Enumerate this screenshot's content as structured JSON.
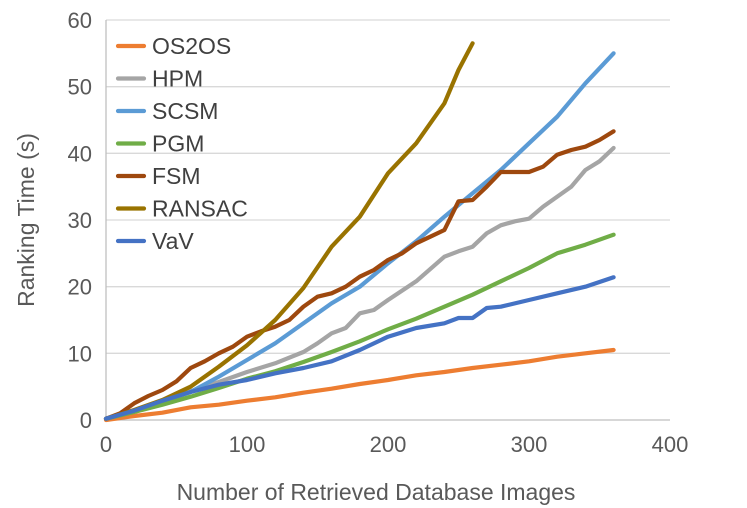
{
  "chart_data": {
    "type": "line",
    "title": "",
    "xlabel": "Number of Retrieved Database Images",
    "ylabel": "Ranking Time (s)",
    "xlim": [
      0,
      400
    ],
    "ylim": [
      0,
      60
    ],
    "x_ticks": [
      0,
      100,
      200,
      300,
      400
    ],
    "y_ticks": [
      0,
      10,
      20,
      30,
      40,
      50,
      60
    ],
    "grid": "horizontal",
    "legend_position": "top-left",
    "series": [
      {
        "name": "OS2OS",
        "color": "#ED7D31",
        "x": [
          0,
          20,
          40,
          60,
          80,
          100,
          120,
          140,
          160,
          180,
          200,
          220,
          240,
          260,
          280,
          300,
          320,
          340,
          360
        ],
        "y": [
          0,
          0.6,
          1.1,
          1.9,
          2.3,
          2.9,
          3.4,
          4.1,
          4.7,
          5.4,
          6.0,
          6.7,
          7.2,
          7.8,
          8.3,
          8.8,
          9.5,
          10.0,
          10.5
        ]
      },
      {
        "name": "HPM",
        "color": "#A5A5A5",
        "x": [
          0,
          20,
          40,
          60,
          80,
          100,
          120,
          140,
          150,
          160,
          170,
          180,
          190,
          200,
          220,
          240,
          250,
          260,
          270,
          280,
          290,
          300,
          310,
          320,
          330,
          340,
          350,
          360
        ],
        "y": [
          0.2,
          1.3,
          2.6,
          4.3,
          5.7,
          7.2,
          8.5,
          10.2,
          11.5,
          13.0,
          13.8,
          16.0,
          16.5,
          18.0,
          20.8,
          24.5,
          25.3,
          26.0,
          28.0,
          29.2,
          29.8,
          30.2,
          32.0,
          33.5,
          35.0,
          37.5,
          38.8,
          40.8
        ]
      },
      {
        "name": "SCSM",
        "color": "#5B9BD5",
        "x": [
          0,
          20,
          40,
          60,
          80,
          100,
          120,
          140,
          160,
          180,
          200,
          220,
          240,
          260,
          280,
          300,
          320,
          340,
          360
        ],
        "y": [
          0.2,
          1.3,
          2.8,
          4.2,
          6.5,
          9.0,
          11.5,
          14.5,
          17.5,
          20.0,
          23.5,
          26.8,
          30.5,
          34.0,
          37.5,
          41.5,
          45.5,
          50.5,
          55.0
        ]
      },
      {
        "name": "PGM",
        "color": "#70AD47",
        "x": [
          0,
          20,
          40,
          60,
          80,
          100,
          120,
          140,
          160,
          180,
          200,
          220,
          240,
          260,
          280,
          300,
          320,
          340,
          360
        ],
        "y": [
          0.2,
          1.2,
          2.3,
          3.5,
          4.8,
          6.2,
          7.3,
          8.7,
          10.2,
          11.8,
          13.6,
          15.2,
          17.0,
          18.8,
          20.8,
          22.8,
          25.0,
          26.3,
          27.8
        ]
      },
      {
        "name": "FSM",
        "color": "#9E480E",
        "x": [
          0,
          10,
          20,
          30,
          40,
          50,
          60,
          70,
          80,
          90,
          100,
          110,
          120,
          130,
          140,
          150,
          160,
          170,
          180,
          190,
          200,
          210,
          220,
          230,
          240,
          250,
          260,
          270,
          280,
          290,
          300,
          310,
          320,
          330,
          340,
          350,
          360
        ],
        "y": [
          0.2,
          1.0,
          2.5,
          3.6,
          4.5,
          5.8,
          7.8,
          8.8,
          10.0,
          11.0,
          12.5,
          13.3,
          14.0,
          15.0,
          17.0,
          18.5,
          19.0,
          20.0,
          21.5,
          22.5,
          24.0,
          25.0,
          26.5,
          27.5,
          28.5,
          32.8,
          33.0,
          35.0,
          37.2,
          37.2,
          37.2,
          38.0,
          39.8,
          40.5,
          41.0,
          42.0,
          43.3
        ]
      },
      {
        "name": "RANSAC",
        "color": "#997300",
        "x": [
          0,
          20,
          40,
          60,
          80,
          100,
          120,
          140,
          160,
          180,
          200,
          220,
          240,
          250,
          260
        ],
        "y": [
          0.2,
          1.5,
          3.0,
          5.0,
          8.0,
          11.2,
          15.0,
          19.8,
          26.0,
          30.5,
          37.0,
          41.5,
          47.5,
          52.5,
          56.5
        ]
      },
      {
        "name": "VaV",
        "color": "#4472C4",
        "x": [
          0,
          20,
          40,
          60,
          80,
          100,
          120,
          140,
          160,
          180,
          200,
          220,
          240,
          250,
          260,
          270,
          280,
          300,
          320,
          340,
          360
        ],
        "y": [
          0.2,
          1.4,
          2.9,
          4.2,
          5.3,
          6.0,
          7.0,
          7.8,
          8.8,
          10.5,
          12.5,
          13.8,
          14.5,
          15.3,
          15.3,
          16.8,
          17.0,
          18.0,
          19.0,
          20.0,
          21.4
        ]
      }
    ]
  }
}
